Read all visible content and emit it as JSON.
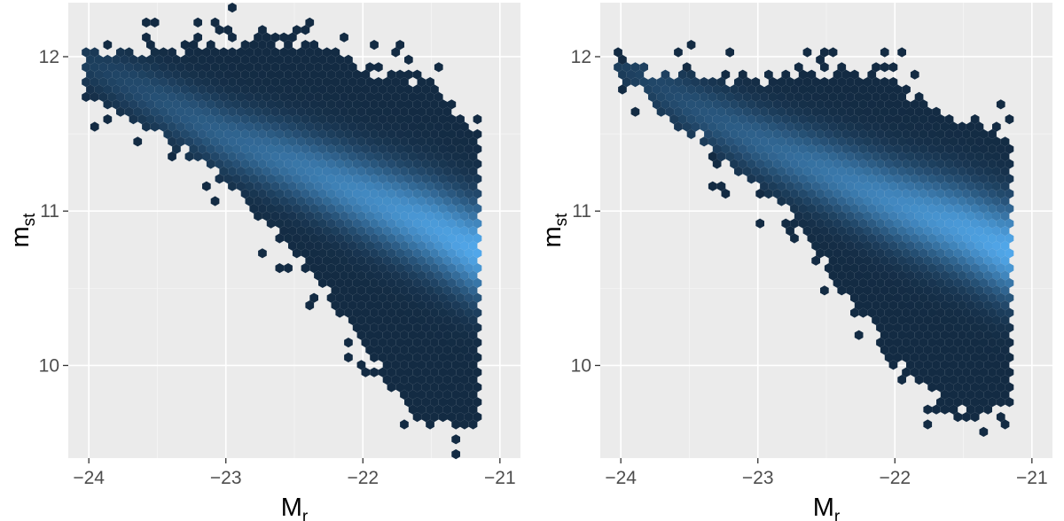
{
  "chart_data": [
    {
      "type": "hexbin",
      "title": "",
      "xlabel": "M",
      "xlabel_sub": "r",
      "ylabel": "m",
      "ylabel_sub": "st",
      "xlim": [
        -24.15,
        -20.85
      ],
      "ylim": [
        9.4,
        12.35
      ],
      "xticks": [
        -24,
        -23,
        -22,
        -21
      ],
      "xtick_labels": [
        "−24",
        "−23",
        "−22",
        "−21"
      ],
      "yticks": [
        10,
        11,
        12
      ],
      "ytick_labels": [
        "10",
        "11",
        "12"
      ],
      "grid": true,
      "color_scale": [
        "#132b43",
        "#56b1f7"
      ],
      "density_ridge": {
        "x": [
          -24,
          -23.5,
          -23,
          -22.5,
          -22,
          -21.5,
          -21.2
        ],
        "y": [
          11.95,
          11.72,
          11.48,
          11.3,
          11.1,
          10.9,
          10.75
        ]
      },
      "envelope": {
        "x": [
          -24.0,
          -23.6,
          -23.2,
          -22.8,
          -22.4,
          -22.0,
          -21.6,
          -21.2
        ],
        "y_max": [
          12.08,
          12.05,
          12.1,
          12.15,
          12.12,
          11.95,
          11.88,
          11.6
        ],
        "y_min": [
          11.7,
          11.5,
          11.3,
          11.0,
          10.6,
          10.1,
          9.6,
          9.55
        ]
      }
    },
    {
      "type": "hexbin",
      "title": "",
      "xlabel": "M",
      "xlabel_sub": "r",
      "ylabel": "m",
      "ylabel_sub": "st",
      "xlim": [
        -24.15,
        -20.85
      ],
      "ylim": [
        9.4,
        12.35
      ],
      "xticks": [
        -24,
        -23,
        -22,
        -21
      ],
      "xtick_labels": [
        "−24",
        "−23",
        "−22",
        "−21"
      ],
      "yticks": [
        10,
        11,
        12
      ],
      "ytick_labels": [
        "10",
        "11",
        "12"
      ],
      "grid": true,
      "color_scale": [
        "#132b43",
        "#56b1f7"
      ],
      "density_ridge": {
        "x": [
          -24,
          -23.5,
          -23,
          -22.5,
          -22,
          -21.5,
          -21.2
        ],
        "y": [
          11.95,
          11.68,
          11.45,
          11.25,
          11.05,
          10.88,
          10.75
        ]
      },
      "envelope": {
        "x": [
          -24.0,
          -23.6,
          -23.2,
          -22.8,
          -22.4,
          -22.0,
          -21.6,
          -21.2
        ],
        "y_max": [
          11.98,
          11.9,
          11.85,
          11.9,
          11.95,
          11.85,
          11.6,
          11.55
        ],
        "y_min": [
          11.85,
          11.55,
          11.3,
          11.0,
          10.5,
          10.0,
          9.7,
          9.7
        ]
      }
    }
  ]
}
